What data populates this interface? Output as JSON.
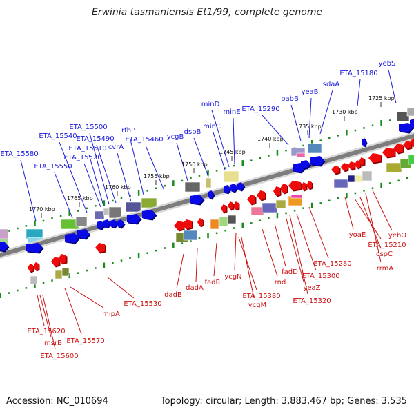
{
  "title": "Erwinia tasmaniensis Et1/99, complete genome",
  "footer": {
    "accession": "Accession: NC_010694",
    "summary": "Topology: circular; Length: 3,883,467 bp; Genes: 3,535"
  },
  "colors": {
    "forward_label": "#1a1adc",
    "reverse_label": "#cc1111",
    "forward_gene": "#0a0ae6",
    "reverse_gene": "#ee0a0a",
    "backbone": "#808080",
    "tick": "#1a8a1a"
  },
  "kbp_ticks": [
    {
      "label": "1770 kbp",
      "at": 1770
    },
    {
      "label": "1765 kbp",
      "at": 1765
    },
    {
      "label": "1760 kbp",
      "at": 1760
    },
    {
      "label": "1755 kbp",
      "at": 1755
    },
    {
      "label": "1750 kbp",
      "at": 1750
    },
    {
      "label": "1745 kbp",
      "at": 1745
    },
    {
      "label": "1740 kbp",
      "at": 1740
    },
    {
      "label": "1735 kbp",
      "at": 1735
    },
    {
      "label": "1730 kbp",
      "at": 1730
    },
    {
      "label": "1725 kbp",
      "at": 1725
    }
  ],
  "forward_genes": [
    {
      "label": "ETA_15580"
    },
    {
      "label": "ETA_15550"
    },
    {
      "label": "ETA_15540"
    },
    {
      "label": "ETA_15520"
    },
    {
      "label": "ETA_15510"
    },
    {
      "label": "ETA_15500"
    },
    {
      "label": "ETA_15490"
    },
    {
      "label": "cvrA"
    },
    {
      "label": "rfbP"
    },
    {
      "label": "ETA_15460"
    },
    {
      "label": "ycgB"
    },
    {
      "label": "dsbB"
    },
    {
      "label": "minC"
    },
    {
      "label": "minD"
    },
    {
      "label": "minE"
    },
    {
      "label": "ETA_15290"
    },
    {
      "label": "pabB"
    },
    {
      "label": "yeaB"
    },
    {
      "label": "sdaA"
    },
    {
      "label": "ETA_15180"
    },
    {
      "label": "yebS"
    }
  ],
  "reverse_genes": [
    {
      "label": "ETA_15620"
    },
    {
      "label": "msrB"
    },
    {
      "label": "ETA_15600"
    },
    {
      "label": "ETA_15570"
    },
    {
      "label": "mipA"
    },
    {
      "label": "ETA_15530"
    },
    {
      "label": "dadB"
    },
    {
      "label": "dadA"
    },
    {
      "label": "fadR"
    },
    {
      "label": "ycgN"
    },
    {
      "label": "ETA_15380"
    },
    {
      "label": "ycgM"
    },
    {
      "label": "rnd"
    },
    {
      "label": "fadD"
    },
    {
      "label": "yeaZ"
    },
    {
      "label": "ETA_15320"
    },
    {
      "label": "ETA_15300"
    },
    {
      "label": "ETA_15280"
    },
    {
      "label": "yoaE"
    },
    {
      "label": "ETA_15210"
    },
    {
      "label": "cspC"
    },
    {
      "label": "rrmA"
    },
    {
      "label": "yebO"
    }
  ]
}
